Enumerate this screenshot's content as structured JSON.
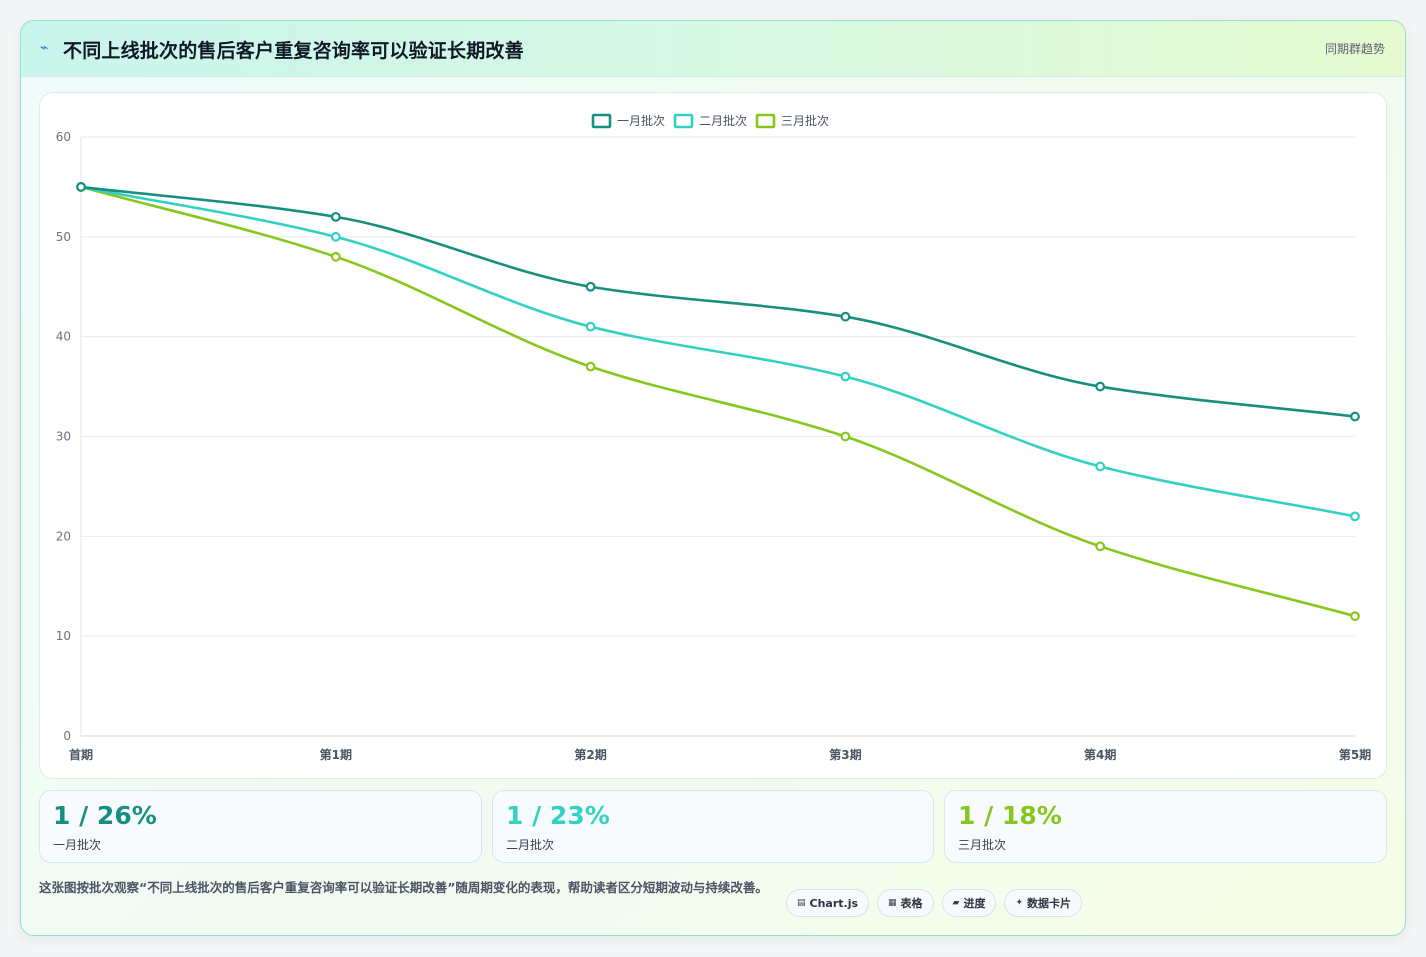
{
  "header": {
    "icon": "lightning-icon",
    "title": "不同上线批次的售后客户重复咨询率可以验证长期改善",
    "tag": "同期群趋势"
  },
  "chart_data": {
    "type": "line",
    "categories": [
      "首期",
      "第1期",
      "第2期",
      "第3期",
      "第4期",
      "第5期"
    ],
    "ylim": [
      0,
      60
    ],
    "yticks": [
      0,
      10,
      20,
      30,
      40,
      50,
      60
    ],
    "grid": true,
    "legend_position": "top",
    "series": [
      {
        "name": "一月批次",
        "color": "#178f80",
        "values": [
          55,
          52,
          45,
          42,
          35,
          32
        ]
      },
      {
        "name": "二月批次",
        "color": "#33d1c2",
        "values": [
          55,
          50,
          41,
          36,
          27,
          22
        ]
      },
      {
        "name": "三月批次",
        "color": "#86c71e",
        "values": [
          55,
          48,
          37,
          30,
          19,
          12
        ]
      }
    ]
  },
  "stats": [
    {
      "value": "1 / 26%",
      "label": "一月批次",
      "color": "#178f80"
    },
    {
      "value": "1 / 23%",
      "label": "二月批次",
      "color": "#33d1c2"
    },
    {
      "value": "1 / 18%",
      "label": "三月批次",
      "color": "#86c71e"
    }
  ],
  "description": "这张图按批次观察“不同上线批次的售后客户重复咨询率可以验证长期改善”随周期变化的表现，帮助读者区分短期波动与持续改善。",
  "chips": [
    {
      "icon": "chart-icon",
      "glyph": "▤",
      "label": "Chart.js"
    },
    {
      "icon": "table-icon",
      "glyph": "▦",
      "label": "表格"
    },
    {
      "icon": "progress-icon",
      "glyph": "▰",
      "label": "进度"
    },
    {
      "icon": "sparkle-icon",
      "glyph": "✦",
      "label": "数据卡片"
    }
  ]
}
